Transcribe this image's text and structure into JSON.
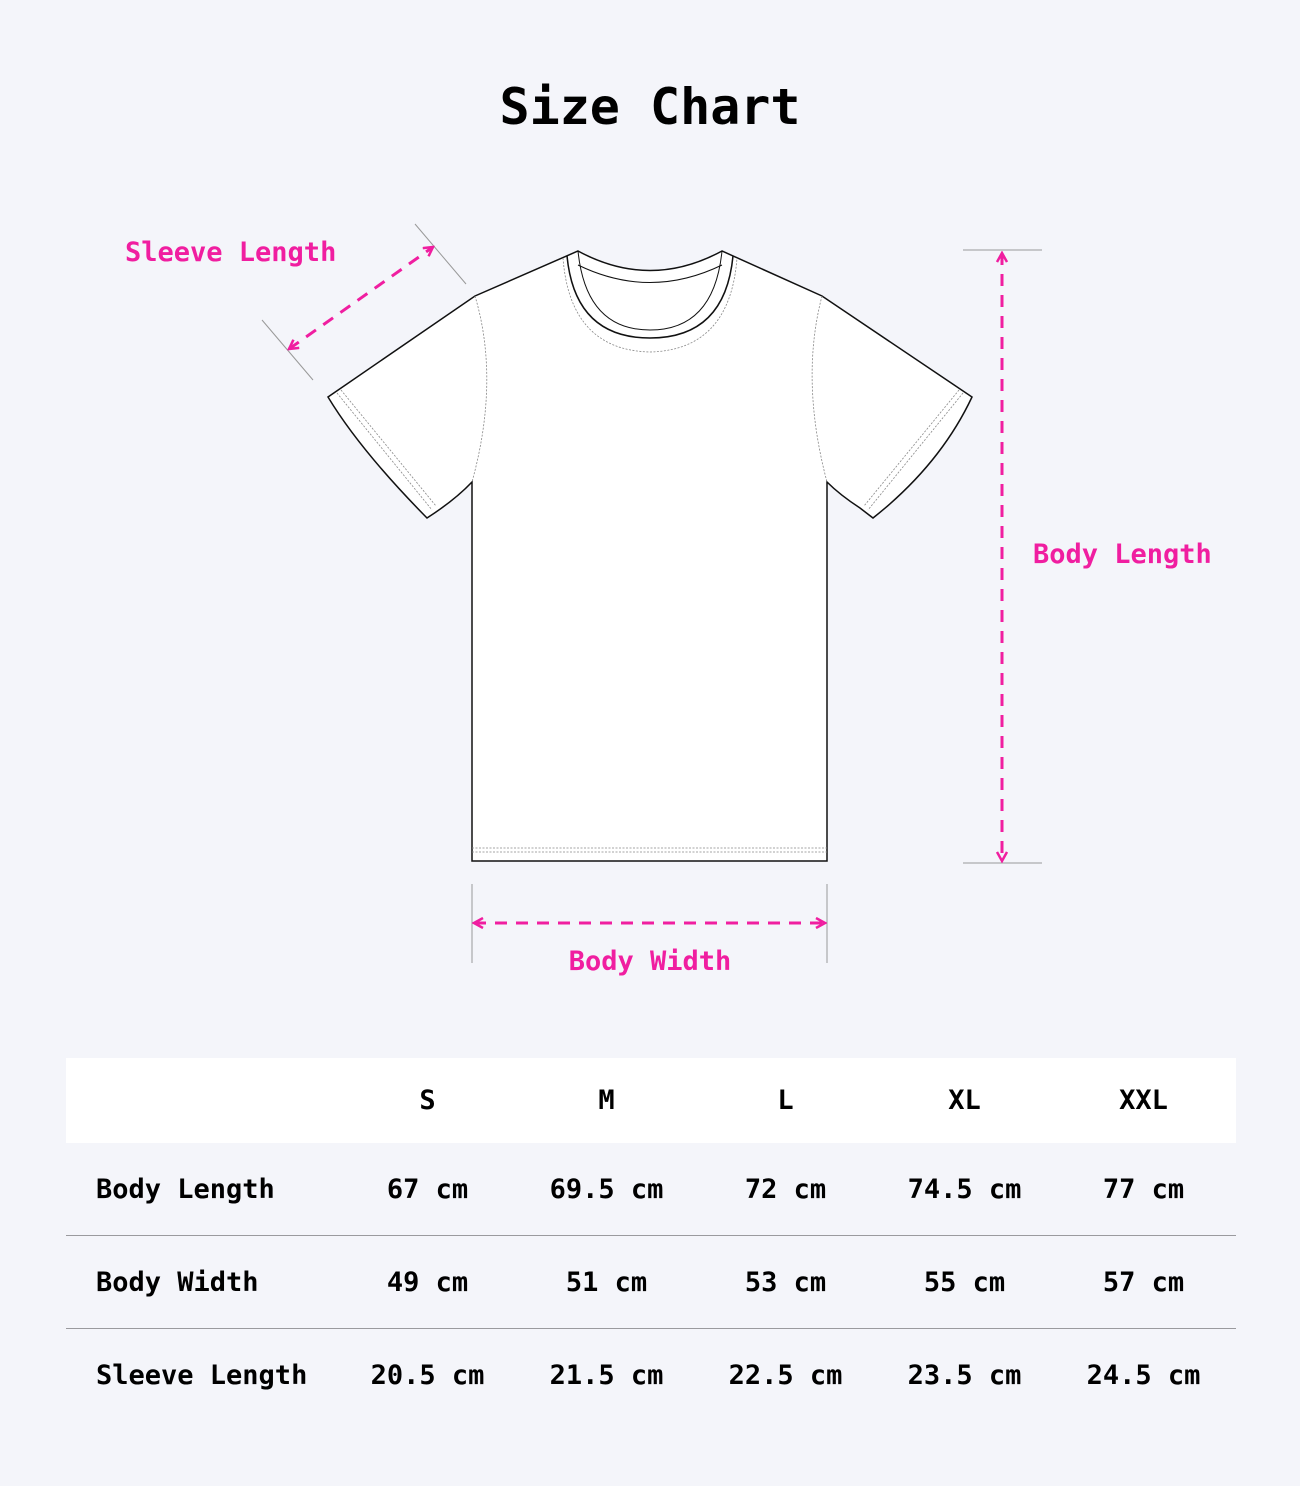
{
  "title": "Size Chart",
  "accent_color": "#f01ea0",
  "measurements": {
    "sleeve_length": "Sleeve Length",
    "body_length": "Body Length",
    "body_width": "Body Width"
  },
  "table": {
    "columns": [
      "",
      "S",
      "M",
      "L",
      "XL",
      "XXL"
    ],
    "rows": [
      {
        "label": "Body Length",
        "values": [
          "67 cm",
          "69.5 cm",
          "72 cm",
          "74.5 cm",
          "77 cm"
        ]
      },
      {
        "label": "Body Width",
        "values": [
          "49 cm",
          "51 cm",
          "53 cm",
          "55 cm",
          "57 cm"
        ]
      },
      {
        "label": "Sleeve Length",
        "values": [
          "20.5 cm",
          "21.5 cm",
          "22.5 cm",
          "23.5 cm",
          "24.5 cm"
        ]
      }
    ]
  }
}
